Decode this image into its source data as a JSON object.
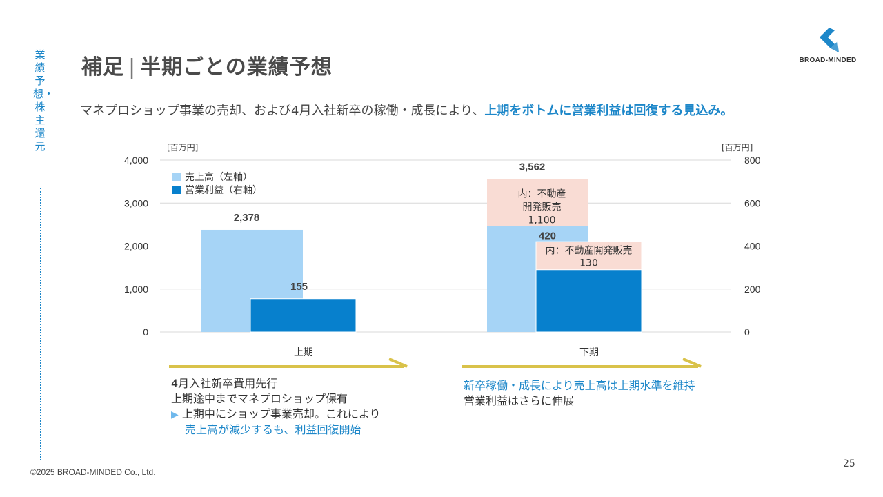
{
  "side": {
    "label": "業績予想・株主還元"
  },
  "header": {
    "title_main": "補足",
    "title_sep": "|",
    "title_sub": "半期ごとの業績予想",
    "logo_text": "BROAD-MINDED"
  },
  "subtitle": {
    "plain": "マネプロショップ事業の売却、および4月入社新卒の稼働・成長により、",
    "highlight": "上期をボトムに営業利益は回復する見込み。"
  },
  "colors": {
    "sales": "#a6d4f6",
    "op_profit": "#0780cd",
    "breakdown": "#f9dcd4",
    "arrow": "#d9c24a",
    "accent": "#1d87c9"
  },
  "chart_data": {
    "type": "bar",
    "categories": [
      "上期",
      "下期"
    ],
    "left_axis": {
      "unit": "[百万円]",
      "ylim": [
        0,
        4000
      ],
      "ticks": [
        "0",
        "1,000",
        "2,000",
        "3,000",
        "4,000"
      ]
    },
    "right_axis": {
      "unit": "[百万円]",
      "ylim": [
        0,
        800
      ],
      "ticks": [
        "0",
        "200",
        "400",
        "600",
        "800"
      ]
    },
    "series": [
      {
        "name": "売上高（左軸）",
        "axis": "left",
        "values": [
          2378,
          3562
        ],
        "labels": [
          "2,378",
          "3,562"
        ]
      },
      {
        "name": "営業利益（右軸）",
        "axis": "right",
        "values": [
          155,
          420
        ],
        "labels": [
          "155",
          "420"
        ]
      }
    ],
    "breakdowns": [
      {
        "series": "売上高（左軸）",
        "category": "下期",
        "value": 1100,
        "text_lines": [
          "内：不動産",
          "開発販売",
          "1,100"
        ]
      },
      {
        "series": "営業利益（右軸）",
        "category": "下期",
        "value": 130,
        "text_lines": [
          "内：不動産開発販売",
          "130"
        ]
      }
    ],
    "grid": true,
    "legend": "top-left"
  },
  "notes": {
    "first_half": {
      "line1": "4月入社新卒費用先行",
      "line2": "上期途中までマネプロショップ保有",
      "bullet": "▶",
      "line3": "上期中にショップ事業売却。これにより",
      "line4": "売上高が減少するも、利益回復開始"
    },
    "second_half": {
      "line1": "新卒稼働・成長により売上高は上期水準を維持",
      "line2": "営業利益はさらに伸展"
    }
  },
  "footer": {
    "copyright": "©2025 BROAD-MINDED Co., Ltd.",
    "page": "25"
  }
}
